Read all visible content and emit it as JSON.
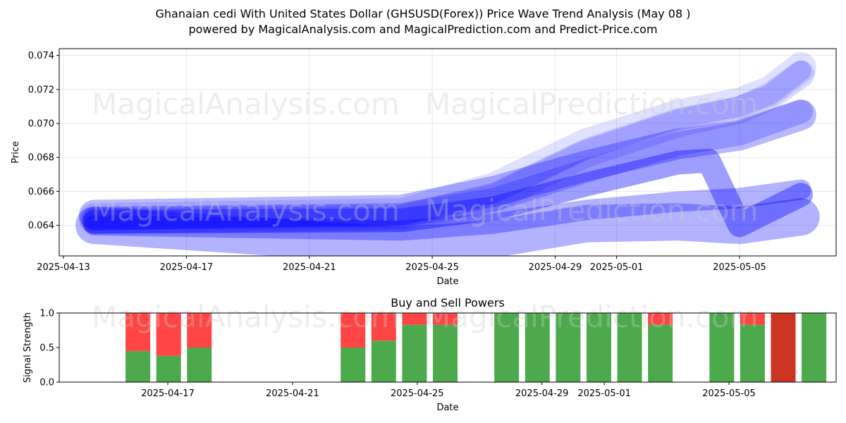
{
  "title_line1": "Ghanaian cedi With United States Dollar (GHSUSD(Forex)) Price Wave Trend Analysis (May 08 )",
  "title_line2": "powered by MagicalAnalysis.com and MagicalPrediction.com and Predict-Price.com",
  "watermark_left": "MagicalAnalysis.com",
  "watermark_right": "MagicalPrediction.com",
  "colors": {
    "wave": "#0000ff",
    "buy": "#4caa4c",
    "sell": "#ff4444",
    "sell_strong": "#cc3322"
  },
  "chart_data": [
    {
      "type": "area",
      "title": "",
      "xlabel": "Date",
      "ylabel": "Price",
      "x_range": [
        "2025-04-13",
        "2025-05-08"
      ],
      "ylim": [
        0.0622,
        0.0744
      ],
      "x_ticks": [
        "2025-04-13",
        "2025-04-17",
        "2025-04-21",
        "2025-04-25",
        "2025-04-29",
        "2025-05-01",
        "2025-05-05"
      ],
      "y_ticks": [
        0.064,
        0.066,
        0.068,
        0.07,
        0.072,
        0.074
      ],
      "y_tick_labels": [
        "0.064",
        "0.066",
        "0.068",
        "0.070",
        "0.072",
        "0.074"
      ],
      "grid": true,
      "series": [
        {
          "x": [
            "2025-04-14",
            "2025-04-24",
            "2025-04-27",
            "2025-04-30",
            "2025-05-03",
            "2025-05-05",
            "2025-05-06",
            "2025-05-07"
          ],
          "y": [
            0.0644,
            0.0647,
            0.0662,
            0.0688,
            0.0705,
            0.0712,
            0.0719,
            0.0733
          ],
          "band": 0.0009,
          "opacity": 0.12
        },
        {
          "x": [
            "2025-04-14",
            "2025-04-24",
            "2025-04-27",
            "2025-04-30",
            "2025-05-03",
            "2025-05-05",
            "2025-05-06",
            "2025-05-07"
          ],
          "y": [
            0.0643,
            0.0645,
            0.0656,
            0.0682,
            0.07,
            0.0708,
            0.0716,
            0.0729
          ],
          "band": 0.0008,
          "opacity": 0.14
        },
        {
          "x": [
            "2025-04-14",
            "2025-04-24",
            "2025-04-27",
            "2025-04-30",
            "2025-05-03",
            "2025-05-05",
            "2025-05-06",
            "2025-05-07"
          ],
          "y": [
            0.0644,
            0.0646,
            0.0659,
            0.0685,
            0.0703,
            0.071,
            0.0717,
            0.0731
          ],
          "band": 0.0006,
          "opacity": 0.16
        },
        {
          "x": [
            "2025-04-14",
            "2025-04-24",
            "2025-04-27",
            "2025-04-30",
            "2025-05-03",
            "2025-05-05",
            "2025-05-07"
          ],
          "y": [
            0.0644,
            0.0646,
            0.0655,
            0.0672,
            0.0688,
            0.0694,
            0.0707
          ],
          "band": 0.0007,
          "opacity": 0.2
        },
        {
          "x": [
            "2025-04-14",
            "2025-04-24",
            "2025-04-27",
            "2025-04-30",
            "2025-05-03",
            "2025-05-05",
            "2025-05-07"
          ],
          "y": [
            0.0646,
            0.0649,
            0.066,
            0.0675,
            0.0688,
            0.0693,
            0.0705
          ],
          "band": 0.0009,
          "opacity": 0.28
        },
        {
          "x": [
            "2025-04-14",
            "2025-04-24",
            "2025-04-27",
            "2025-04-30",
            "2025-05-03",
            "2025-05-04",
            "2025-05-05",
            "2025-05-07"
          ],
          "y": [
            0.0642,
            0.0643,
            0.065,
            0.0664,
            0.0677,
            0.0678,
            0.064,
            0.0658
          ],
          "band": 0.0007,
          "opacity": 0.38
        },
        {
          "x": [
            "2025-04-14",
            "2025-04-24",
            "2025-04-27",
            "2025-04-30",
            "2025-05-03",
            "2025-05-05",
            "2025-05-07"
          ],
          "y": [
            0.064,
            0.0637,
            0.0641,
            0.0649,
            0.0654,
            0.0656,
            0.0661
          ],
          "band": 0.0006,
          "opacity": 0.3
        },
        {
          "x": [
            "2025-04-14",
            "2025-04-24",
            "2025-04-27",
            "2025-04-30",
            "2025-05-03",
            "2025-05-05",
            "2025-05-07"
          ],
          "y": [
            0.064,
            0.0628,
            0.0632,
            0.0641,
            0.0642,
            0.064,
            0.0645
          ],
          "band": 0.0011,
          "opacity": 0.3
        }
      ]
    },
    {
      "type": "bar",
      "title": "Buy and Sell Powers",
      "xlabel": "Date",
      "ylabel": "Signal Strength",
      "x_range": [
        "2025-04-13",
        "2025-05-08"
      ],
      "ylim": [
        0,
        1
      ],
      "x_ticks": [
        "2025-04-17",
        "2025-04-21",
        "2025-04-25",
        "2025-04-29",
        "2025-05-01",
        "2025-05-05"
      ],
      "y_ticks": [
        0,
        0.5,
        1
      ],
      "y_tick_labels": [
        "0.0",
        "0.5",
        "1.0"
      ],
      "grid": false,
      "dates": [
        "2025-04-14",
        "2025-04-15",
        "2025-04-16",
        "2025-04-21",
        "2025-04-22",
        "2025-04-23",
        "2025-04-24",
        "2025-04-26",
        "2025-04-27",
        "2025-04-28",
        "2025-04-29",
        "2025-04-30",
        "2025-05-01",
        "2025-05-03",
        "2025-05-04",
        "2025-05-05",
        "2025-05-06"
      ],
      "series": [
        {
          "name": "Buy",
          "values": [
            0.45,
            0.38,
            0.5,
            0.5,
            0.6,
            0.83,
            0.83,
            1.0,
            1.0,
            1.0,
            1.0,
            1.0,
            0.83,
            1.0,
            0.83,
            0.0,
            1.0
          ]
        },
        {
          "name": "Sell",
          "values": [
            0.55,
            0.62,
            0.5,
            0.5,
            0.4,
            0.17,
            0.17,
            0.0,
            0.0,
            0.0,
            0.0,
            0.0,
            0.17,
            0.0,
            0.17,
            1.0,
            0.0
          ]
        }
      ]
    }
  ]
}
